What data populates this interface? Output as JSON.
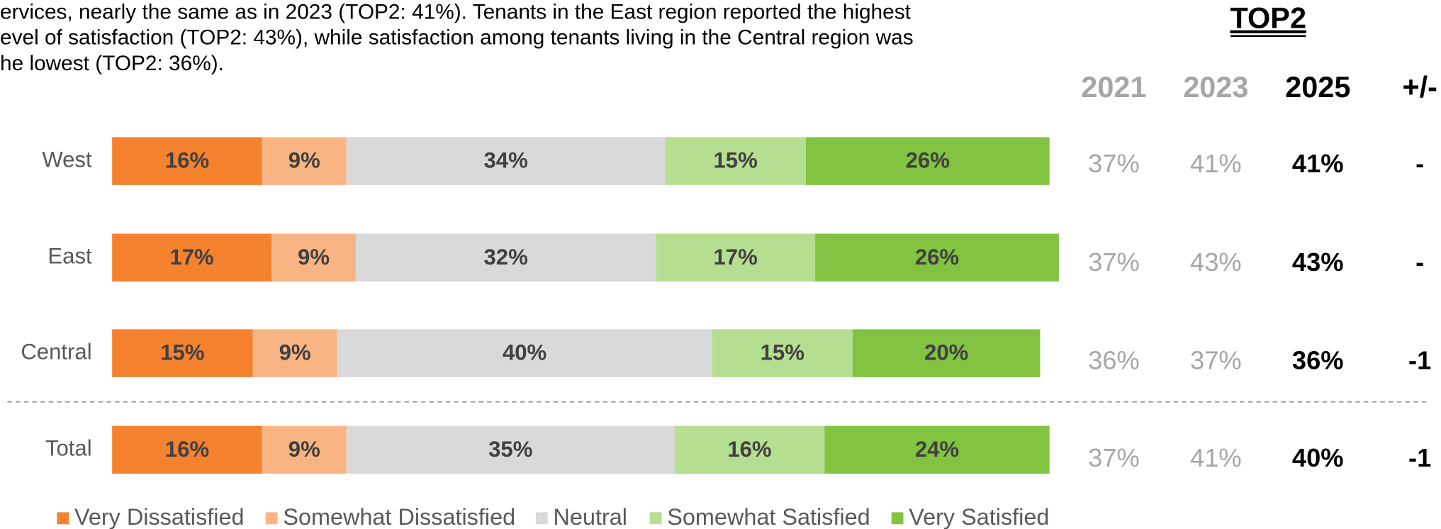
{
  "chart_data": {
    "type": "bar",
    "orientation": "horizontal",
    "stacked": true,
    "intro": [
      "ervices, nearly the same as in 2023 (TOP2: 41%). Tenants in the East region reported the highest",
      "evel of satisfaction (TOP2: 43%), while satisfaction among tenants living in the Central region was",
      "he lowest (TOP2: 36%)."
    ],
    "categories": [
      "West",
      "East",
      "Central",
      "Total"
    ],
    "xlim": [
      0,
      100
    ],
    "series": [
      {
        "name": "Very Dissatisfied",
        "color": "#F5822F",
        "values": [
          16,
          17,
          15,
          16
        ],
        "value_labels": [
          "16%",
          "17%",
          "15%",
          "16%"
        ]
      },
      {
        "name": "Somewhat Dissatisfied",
        "color": "#F9B484",
        "values": [
          9,
          9,
          9,
          9
        ],
        "value_labels": [
          "9%",
          "9%",
          "9%",
          "9%"
        ]
      },
      {
        "name": "Neutral",
        "color": "#D9D9D9",
        "values": [
          34,
          32,
          40,
          35
        ],
        "value_labels": [
          "34%",
          "32%",
          "40%",
          "35%"
        ]
      },
      {
        "name": "Somewhat Satisfied",
        "color": "#B5DE90",
        "values": [
          15,
          17,
          15,
          16
        ],
        "value_labels": [
          "15%",
          "17%",
          "15%",
          "16%"
        ]
      },
      {
        "name": "Very Satisfied",
        "color": "#82C341",
        "values": [
          26,
          26,
          20,
          24
        ],
        "value_labels": [
          "26%",
          "26%",
          "20%",
          "24%"
        ]
      }
    ],
    "legend": "bottom",
    "table": {
      "title": "TOP2",
      "columns": [
        "2021",
        "2023",
        "2025",
        "+/-"
      ],
      "rows": [
        [
          "37%",
          "41%",
          "41%",
          "-"
        ],
        [
          "37%",
          "43%",
          "43%",
          "-"
        ],
        [
          "36%",
          "37%",
          "36%",
          "-1"
        ],
        [
          "37%",
          "41%",
          "40%",
          "-1"
        ]
      ]
    }
  }
}
